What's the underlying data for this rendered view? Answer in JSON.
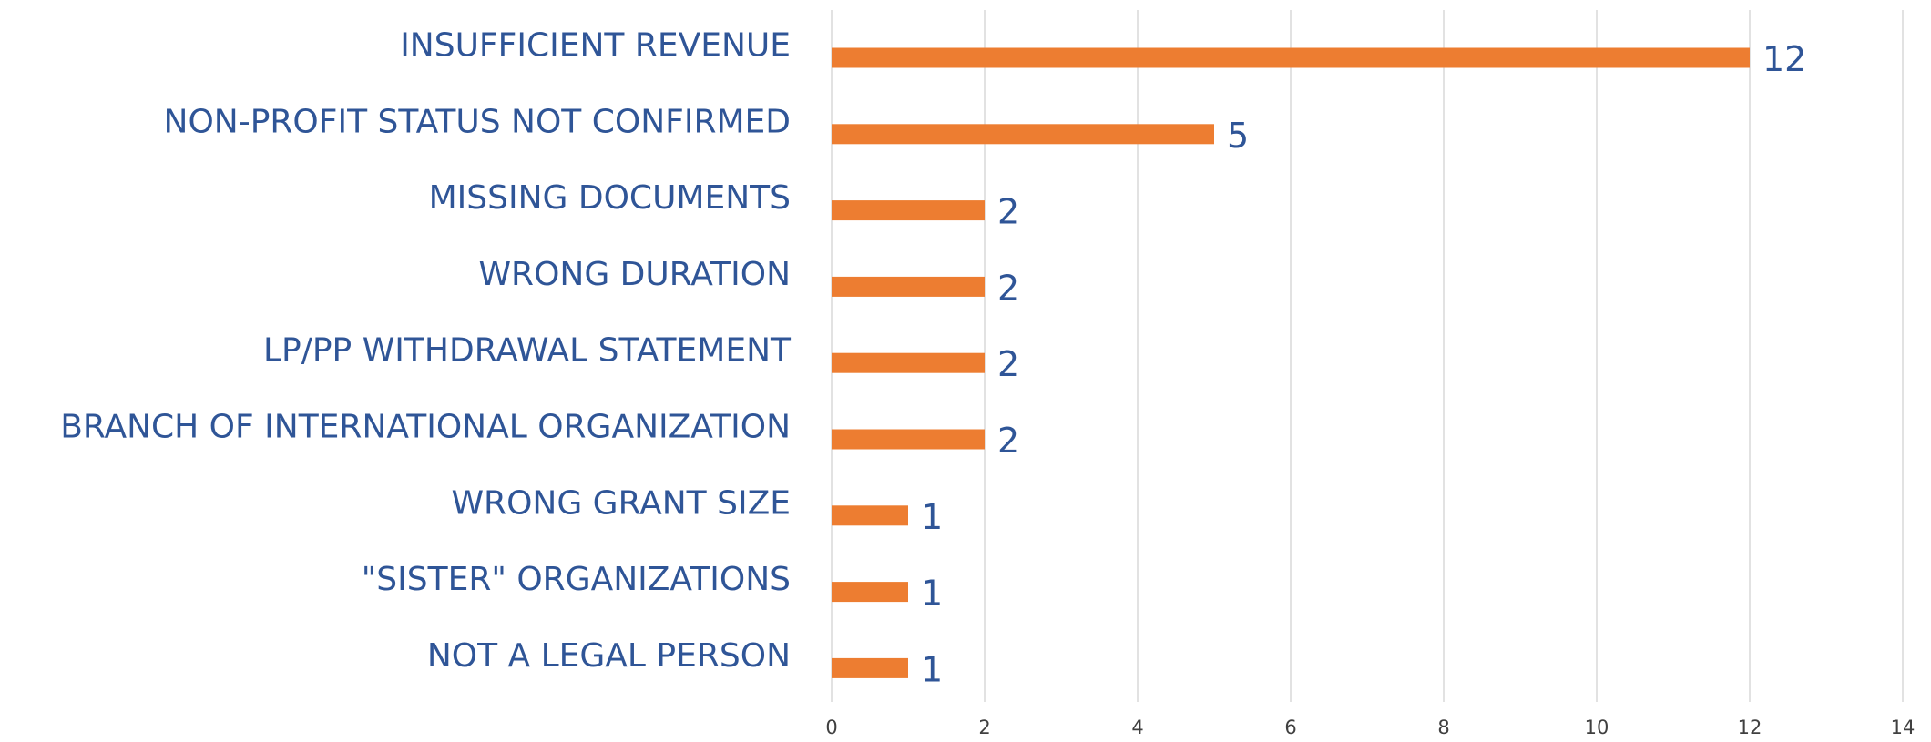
{
  "chart_data": {
    "type": "bar",
    "orientation": "horizontal",
    "categories": [
      "INSUFFICIENT REVENUE",
      "NON-PROFIT STATUS NOT CONFIRMED",
      "MISSING DOCUMENTS",
      "WRONG DURATION",
      "LP/PP WITHDRAWAL STATEMENT",
      "BRANCH OF INTERNATIONAL ORGANIZATION",
      "WRONG GRANT SIZE",
      "\"SISTER\" ORGANIZATIONS",
      "NOT A LEGAL PERSON"
    ],
    "values": [
      12,
      5,
      2,
      2,
      2,
      2,
      1,
      1,
      1
    ],
    "color": "#ed7d31",
    "xlim": [
      0,
      14
    ],
    "xticks": [
      0,
      2,
      4,
      6,
      8,
      10,
      12,
      14
    ],
    "grid": true
  }
}
